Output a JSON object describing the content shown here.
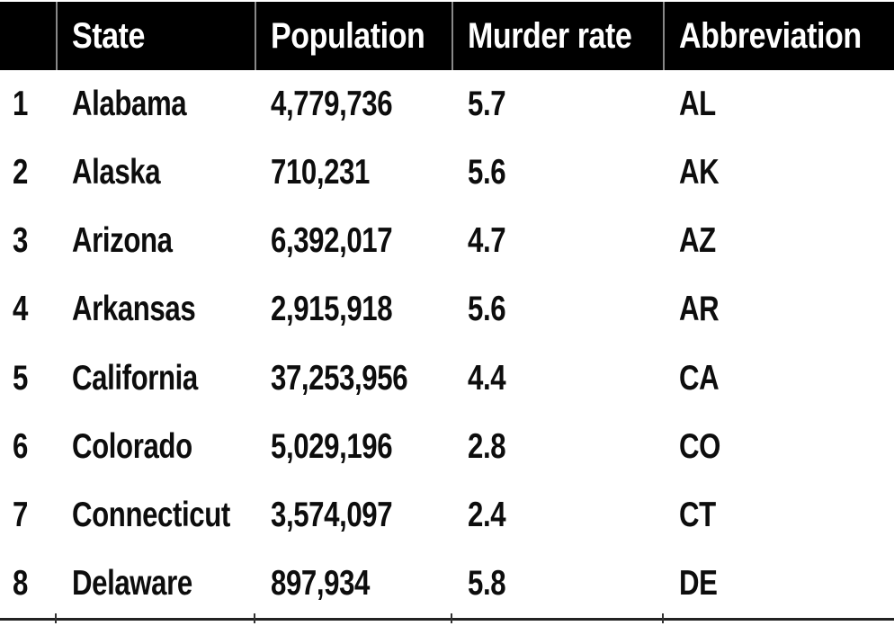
{
  "colors": {
    "header_bg": "#000000",
    "header_text": "#ffffff",
    "header_divider": "#888888",
    "body_text": "#0d0d0d",
    "bottom_rule": "#222222"
  },
  "table": {
    "headers": {
      "index": "",
      "state": "State",
      "population": "Population",
      "murder_rate": "Murder rate",
      "abbreviation": "Abbreviation"
    },
    "rows": [
      {
        "index": "1",
        "state": "Alabama",
        "population": "4,779,736",
        "murder_rate": "5.7",
        "abbreviation": "AL"
      },
      {
        "index": "2",
        "state": "Alaska",
        "population": "710,231",
        "murder_rate": "5.6",
        "abbreviation": "AK"
      },
      {
        "index": "3",
        "state": "Arizona",
        "population": "6,392,017",
        "murder_rate": "4.7",
        "abbreviation": "AZ"
      },
      {
        "index": "4",
        "state": "Arkansas",
        "population": "2,915,918",
        "murder_rate": "5.6",
        "abbreviation": "AR"
      },
      {
        "index": "5",
        "state": "California",
        "population": "37,253,956",
        "murder_rate": "4.4",
        "abbreviation": "CA"
      },
      {
        "index": "6",
        "state": "Colorado",
        "population": "5,029,196",
        "murder_rate": "2.8",
        "abbreviation": "CO"
      },
      {
        "index": "7",
        "state": "Connecticut",
        "population": "3,574,097",
        "murder_rate": "2.4",
        "abbreviation": "CT"
      },
      {
        "index": "8",
        "state": "Delaware",
        "population": "897,934",
        "murder_rate": "5.8",
        "abbreviation": "DE"
      }
    ]
  }
}
